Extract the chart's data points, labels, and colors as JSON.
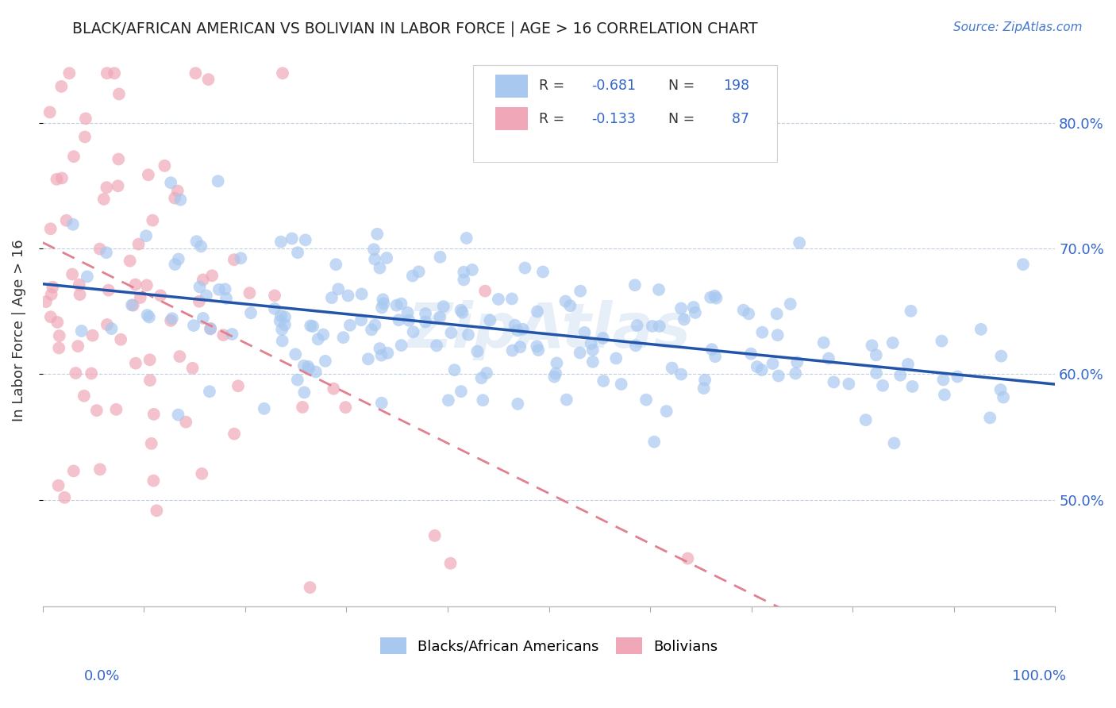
{
  "title": "BLACK/AFRICAN AMERICAN VS BOLIVIAN IN LABOR FORCE | AGE > 16 CORRELATION CHART",
  "source": "Source: ZipAtlas.com",
  "ylabel": "In Labor Force | Age > 16",
  "watermark": "ZipAtlas",
  "blue_R": -0.681,
  "blue_N": 198,
  "pink_R": -0.133,
  "pink_N": 87,
  "blue_color": "#a8c8f0",
  "pink_color": "#f0a8b8",
  "blue_line_color": "#2255aa",
  "pink_line_color": "#e08090",
  "ytick_labels": [
    "50.0%",
    "60.0%",
    "70.0%",
    "80.0%"
  ],
  "ytick_positions": [
    0.5,
    0.6,
    0.7,
    0.8
  ],
  "xmin": 0.0,
  "xmax": 1.0,
  "ymin": 0.415,
  "ymax": 0.855,
  "blue_line_start_y": 0.672,
  "blue_line_end_y": 0.592,
  "pink_line_start_y": 0.705,
  "pink_line_end_y": 0.305
}
